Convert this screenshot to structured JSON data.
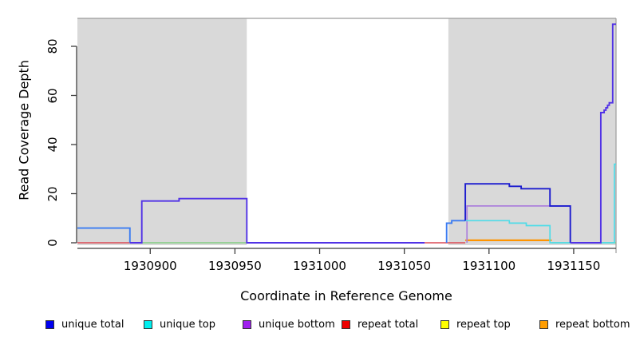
{
  "figure": {
    "background": "#FFFFFF",
    "band_color": "#D9D9D9",
    "box_border_color": "#9B9B9B",
    "axis_color": "#3C3C3C"
  },
  "chart_data": {
    "type": "line",
    "title": "",
    "xlabel": "Coordinate in Reference Genome",
    "ylabel": "Read Coverage Depth",
    "xlim": [
      1930857,
      1931175
    ],
    "ylim": [
      0,
      92
    ],
    "x_ticks": [
      1930900,
      1930950,
      1931000,
      1931050,
      1931100,
      1931150
    ],
    "y_ticks": [
      0,
      20,
      40,
      60,
      80
    ],
    "grid": "off",
    "legend_position": "bottom",
    "shaded_regions": [
      {
        "from": 1930857,
        "to": 1930957
      },
      {
        "from": 1931076,
        "to": 1931175
      }
    ],
    "legend": [
      {
        "label": "unique total",
        "color": "#0000F0"
      },
      {
        "label": "unique top",
        "color": "#00EEEE"
      },
      {
        "label": "unique bottom",
        "color": "#A020F0"
      },
      {
        "label": "repeat total",
        "color": "#EE0000"
      },
      {
        "label": "repeat top",
        "color": "#FFFF00"
      },
      {
        "label": "repeat bottom",
        "color": "#FF9D00"
      }
    ],
    "series": [
      {
        "series": "repeat total",
        "color": "#DC4A56",
        "width": 1.5,
        "points": [
          [
            1930857,
            0
          ],
          [
            1930889,
            0
          ]
        ]
      },
      {
        "series": "repeat total",
        "color": "#DC4A56",
        "width": 1.5,
        "points": [
          [
            1931062,
            0
          ],
          [
            1931086,
            0
          ]
        ]
      },
      {
        "series": "repeat top",
        "color": "#82CE82",
        "width": 1.5,
        "points": [
          [
            1930895,
            0
          ],
          [
            1930957,
            0
          ]
        ]
      },
      {
        "series": "repeat top",
        "color": "#82CE82",
        "width": 1.5,
        "points": [
          [
            1931137,
            0
          ],
          [
            1931176,
            0
          ]
        ]
      },
      {
        "series": "repeat bottom",
        "color": "#FF9400",
        "width": 2.2,
        "points": [
          [
            1931086,
            1
          ],
          [
            1931137,
            1
          ]
        ]
      },
      {
        "series": "unique bottom",
        "color": "#AC80DC",
        "width": 1.7,
        "points": [
          [
            1931087,
            0
          ],
          [
            1931087,
            15
          ],
          [
            1931148,
            15
          ],
          [
            1931148,
            0
          ]
        ]
      },
      {
        "series": "unique top",
        "color": "#4FDCE8",
        "width": 1.7,
        "points": [
          [
            1931086,
            9
          ],
          [
            1931112,
            9
          ],
          [
            1931112,
            8
          ],
          [
            1931122,
            8
          ],
          [
            1931122,
            7
          ],
          [
            1931136,
            7
          ],
          [
            1931136,
            0
          ],
          [
            1931174,
            0
          ],
          [
            1931174,
            32
          ],
          [
            1931176,
            32
          ]
        ]
      },
      {
        "series": "unique total",
        "color": "#3B7CF2",
        "width": 1.9,
        "points": [
          [
            1930857,
            6
          ],
          [
            1930888,
            6
          ],
          [
            1930888,
            0
          ]
        ]
      },
      {
        "series": "unique total",
        "color": "#5132E6",
        "width": 1.9,
        "points": [
          [
            1930888,
            0
          ],
          [
            1930895,
            0
          ],
          [
            1930895,
            17
          ],
          [
            1930917,
            17
          ],
          [
            1930917,
            18
          ],
          [
            1930957,
            18
          ],
          [
            1930957,
            0
          ],
          [
            1931062,
            0
          ]
        ]
      },
      {
        "series": "unique total",
        "color": "#3B7CF2",
        "width": 1.9,
        "points": [
          [
            1931075,
            0
          ],
          [
            1931075,
            8
          ],
          [
            1931078,
            8
          ],
          [
            1931078,
            9
          ],
          [
            1931086,
            9
          ]
        ]
      },
      {
        "series": "unique total",
        "color": "#1D1DCF",
        "width": 1.9,
        "points": [
          [
            1931086,
            9
          ],
          [
            1931086,
            24
          ],
          [
            1931112,
            24
          ],
          [
            1931112,
            23
          ],
          [
            1931119,
            23
          ],
          [
            1931119,
            22
          ],
          [
            1931136,
            22
          ],
          [
            1931136,
            15
          ],
          [
            1931148,
            15
          ],
          [
            1931148,
            0
          ]
        ]
      },
      {
        "series": "unique total",
        "color": "#5132E6",
        "width": 1.9,
        "points": [
          [
            1931148,
            0
          ],
          [
            1931166,
            0
          ],
          [
            1931166,
            53
          ],
          [
            1931168,
            53
          ],
          [
            1931168,
            54
          ],
          [
            1931169,
            54
          ],
          [
            1931169,
            55
          ],
          [
            1931170,
            55
          ],
          [
            1931170,
            56
          ],
          [
            1931171,
            56
          ],
          [
            1931171,
            57
          ],
          [
            1931173,
            57
          ],
          [
            1931173,
            89
          ],
          [
            1931176,
            89
          ]
        ]
      }
    ]
  }
}
